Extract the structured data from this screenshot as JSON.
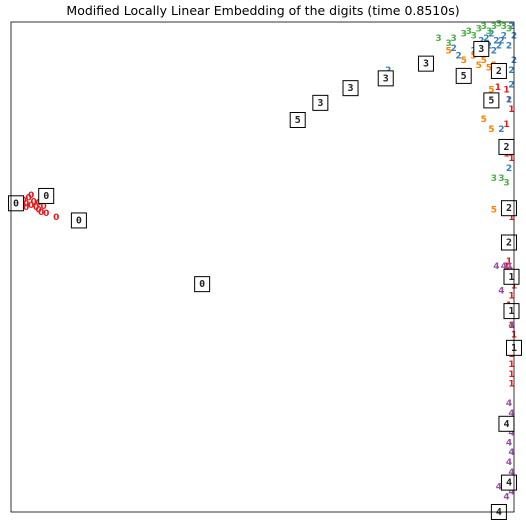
{
  "chart_data": {
    "type": "scatter",
    "title": "Modified Locally Linear Embedding of the digits (time 0.8510s)",
    "xlabel": "",
    "ylabel": "",
    "xlim": [
      0,
      1
    ],
    "ylim": [
      0,
      1
    ],
    "grid": false,
    "axis_ticks": false,
    "colors": {
      "0": "#e41a1c",
      "1": "#e41a1c",
      "2": "#377eb8",
      "3": "#4daf4a",
      "4": "#984ea3",
      "5": "#ff7f00"
    },
    "series": [
      {
        "name": "0",
        "points": [
          [
            0.02,
            0.63
          ],
          [
            0.025,
            0.635
          ],
          [
            0.03,
            0.628
          ],
          [
            0.035,
            0.64
          ],
          [
            0.04,
            0.625
          ],
          [
            0.045,
            0.632
          ],
          [
            0.05,
            0.62
          ],
          [
            0.055,
            0.615
          ],
          [
            0.06,
            0.61
          ],
          [
            0.07,
            0.608
          ],
          [
            0.09,
            0.6
          ],
          [
            0.03,
            0.62
          ],
          [
            0.04,
            0.645
          ],
          [
            0.055,
            0.63
          ],
          [
            0.065,
            0.622
          ]
        ]
      },
      {
        "name": "1",
        "points": [
          [
            0.968,
            0.865
          ],
          [
            0.985,
            0.86
          ],
          [
            0.99,
            0.84
          ],
          [
            0.995,
            0.82
          ],
          [
            0.985,
            0.79
          ],
          [
            0.985,
            0.73
          ],
          [
            0.995,
            0.72
          ],
          [
            0.995,
            0.61
          ],
          [
            0.995,
            0.6
          ],
          [
            0.99,
            0.51
          ],
          [
            0.985,
            0.5
          ],
          [
            0.995,
            0.49
          ],
          [
            0.99,
            0.48
          ],
          [
            0.995,
            0.47
          ],
          [
            1.0,
            0.46
          ],
          [
            0.995,
            0.44
          ],
          [
            0.99,
            0.42
          ],
          [
            0.995,
            0.4
          ],
          [
            0.995,
            0.38
          ],
          [
            1.0,
            0.36
          ],
          [
            0.995,
            0.34
          ],
          [
            0.995,
            0.32
          ],
          [
            0.995,
            0.3
          ],
          [
            0.995,
            0.28
          ],
          [
            0.995,
            0.26
          ]
        ]
      },
      {
        "name": "2",
        "points": [
          [
            0.88,
            0.945
          ],
          [
            0.89,
            0.93
          ],
          [
            0.92,
            0.94
          ],
          [
            0.93,
            0.935
          ],
          [
            0.935,
            0.96
          ],
          [
            0.945,
            0.965
          ],
          [
            0.95,
            0.95
          ],
          [
            0.955,
            0.975
          ],
          [
            0.96,
            0.94
          ],
          [
            0.965,
            0.96
          ],
          [
            0.97,
            0.95
          ],
          [
            0.975,
            0.96
          ],
          [
            0.98,
            0.97
          ],
          [
            0.99,
            0.95
          ],
          [
            1.0,
            0.92
          ],
          [
            0.995,
            0.9
          ],
          [
            0.995,
            0.87
          ],
          [
            0.98,
            0.9
          ],
          [
            0.99,
            0.84
          ],
          [
            0.975,
            0.78
          ],
          [
            0.99,
            0.7
          ],
          [
            0.75,
            0.9
          ],
          [
            0.995,
            0.99
          ],
          [
            1.0,
            0.97
          ]
        ]
      },
      {
        "name": "3",
        "points": [
          [
            0.85,
            0.965
          ],
          [
            0.87,
            0.955
          ],
          [
            0.88,
            0.965
          ],
          [
            0.9,
            0.975
          ],
          [
            0.91,
            0.98
          ],
          [
            0.92,
            0.97
          ],
          [
            0.93,
            0.985
          ],
          [
            0.94,
            0.99
          ],
          [
            0.95,
            0.98
          ],
          [
            0.96,
            0.99
          ],
          [
            0.97,
            0.995
          ],
          [
            0.98,
            0.99
          ],
          [
            0.99,
            0.985
          ],
          [
            0.96,
            0.68
          ],
          [
            0.975,
            0.68
          ],
          [
            0.985,
            0.67
          ]
        ]
      },
      {
        "name": "4",
        "points": [
          [
            0.965,
            0.5
          ],
          [
            0.98,
            0.5
          ],
          [
            0.99,
            0.5
          ],
          [
            0.975,
            0.45
          ],
          [
            0.995,
            0.38
          ],
          [
            0.99,
            0.22
          ],
          [
            0.995,
            0.2
          ],
          [
            0.99,
            0.18
          ],
          [
            0.995,
            0.16
          ],
          [
            0.99,
            0.14
          ],
          [
            0.995,
            0.12
          ],
          [
            0.99,
            0.1
          ],
          [
            0.995,
            0.08
          ],
          [
            0.99,
            0.06
          ],
          [
            0.995,
            0.04
          ],
          [
            0.97,
            0.05
          ],
          [
            0.985,
            0.03
          ]
        ]
      },
      {
        "name": "5",
        "points": [
          [
            0.87,
            0.94
          ],
          [
            0.9,
            0.92
          ],
          [
            0.92,
            0.93
          ],
          [
            0.93,
            0.91
          ],
          [
            0.94,
            0.92
          ],
          [
            0.95,
            0.905
          ],
          [
            0.96,
            0.91
          ],
          [
            0.965,
            0.89
          ],
          [
            0.97,
            0.9
          ],
          [
            0.955,
            0.86
          ],
          [
            0.96,
            0.84
          ],
          [
            0.94,
            0.8
          ],
          [
            0.955,
            0.78
          ],
          [
            0.96,
            0.615
          ],
          [
            0.945,
            0.83
          ]
        ]
      }
    ],
    "image_annotations": [
      {
        "digit": "0",
        "x": 0.01,
        "y": 0.63
      },
      {
        "digit": "0",
        "x": 0.07,
        "y": 0.645
      },
      {
        "digit": "0",
        "x": 0.135,
        "y": 0.595
      },
      {
        "digit": "0",
        "x": 0.38,
        "y": 0.465
      },
      {
        "digit": "5",
        "x": 0.57,
        "y": 0.8
      },
      {
        "digit": "3",
        "x": 0.615,
        "y": 0.835
      },
      {
        "digit": "3",
        "x": 0.675,
        "y": 0.865
      },
      {
        "digit": "3",
        "x": 0.745,
        "y": 0.885
      },
      {
        "digit": "3",
        "x": 0.825,
        "y": 0.915
      },
      {
        "digit": "3",
        "x": 0.935,
        "y": 0.945
      },
      {
        "digit": "5",
        "x": 0.9,
        "y": 0.89
      },
      {
        "digit": "2",
        "x": 0.97,
        "y": 0.9
      },
      {
        "digit": "5",
        "x": 0.955,
        "y": 0.84
      },
      {
        "digit": "2",
        "x": 0.985,
        "y": 0.745
      },
      {
        "digit": "2",
        "x": 0.99,
        "y": 0.62
      },
      {
        "digit": "2",
        "x": 0.99,
        "y": 0.55
      },
      {
        "digit": "1",
        "x": 0.995,
        "y": 0.48
      },
      {
        "digit": "1",
        "x": 0.995,
        "y": 0.41
      },
      {
        "digit": "1",
        "x": 1.0,
        "y": 0.335
      },
      {
        "digit": "4",
        "x": 0.985,
        "y": 0.18
      },
      {
        "digit": "4",
        "x": 0.99,
        "y": 0.06
      },
      {
        "digit": "4",
        "x": 0.97,
        "y": 0.0
      }
    ]
  }
}
